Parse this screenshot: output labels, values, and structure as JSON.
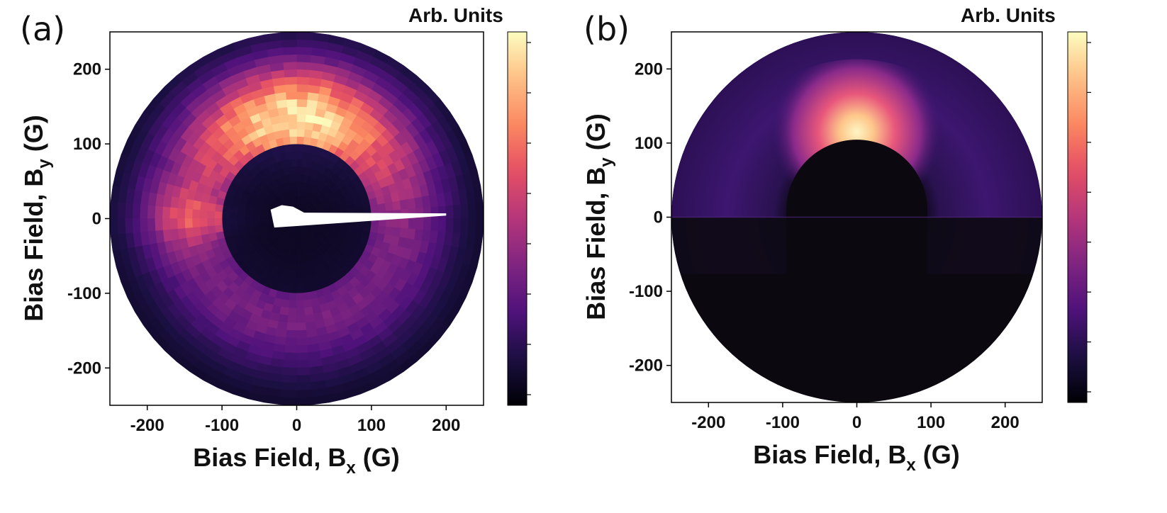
{
  "chart_data": [
    {
      "id": "a",
      "type": "heatmap",
      "panel_label": "(a)",
      "title": "",
      "xlabel": "Bias Field, B",
      "xlabel_sub": "x",
      "xlabel_unit": " (G)",
      "ylabel": "Bias Field, B",
      "ylabel_sub": "y",
      "ylabel_unit": " (G)",
      "colorbar_label": "Arb. Units",
      "colormap": "magma",
      "xlim": [
        -250,
        250
      ],
      "ylim": [
        -250,
        250
      ],
      "xticks": [
        -200,
        -100,
        0,
        100,
        200
      ],
      "yticks": [
        -200,
        -100,
        0,
        100,
        200
      ],
      "xtick_labels": [
        "-200",
        "-100",
        "0",
        "100",
        "200"
      ],
      "ytick_labels": [
        "-200",
        "-100",
        "0",
        "100",
        "200"
      ],
      "colorbar_ticks": 8,
      "style": "measured, pixelated polar grid",
      "data_extent_radius": 250,
      "ring_center_radius": 130,
      "peak_direction_deg": 90,
      "peak_field": [
        0,
        140
      ],
      "dark_core_radius": 100,
      "masked_region": "white wedge from (-35, 10) to (200, 5)"
    },
    {
      "id": "b",
      "type": "heatmap",
      "panel_label": "(b)",
      "title": "",
      "xlabel": "Bias Field, B",
      "xlabel_sub": "x",
      "xlabel_unit": " (G)",
      "ylabel": "Bias Field, B",
      "ylabel_sub": "y",
      "ylabel_unit": " (G)",
      "colorbar_label": "Arb. Units",
      "colormap": "magma",
      "xlim": [
        -250,
        250
      ],
      "ylim": [
        -250,
        250
      ],
      "xticks": [
        -200,
        -100,
        0,
        100,
        200
      ],
      "yticks": [
        -200,
        -100,
        0,
        100,
        200
      ],
      "xtick_labels": [
        "-200",
        "-100",
        "0",
        "100",
        "200"
      ],
      "ytick_labels": [
        "-200",
        "-100",
        "0",
        "100",
        "200"
      ],
      "colorbar_ticks": 8,
      "style": "simulated, smooth",
      "data_extent_radius": 250,
      "ring_center_radius": 105,
      "peak_direction_deg": 90,
      "peak_field": [
        0,
        110
      ],
      "dark_core_radius": 95
    }
  ]
}
